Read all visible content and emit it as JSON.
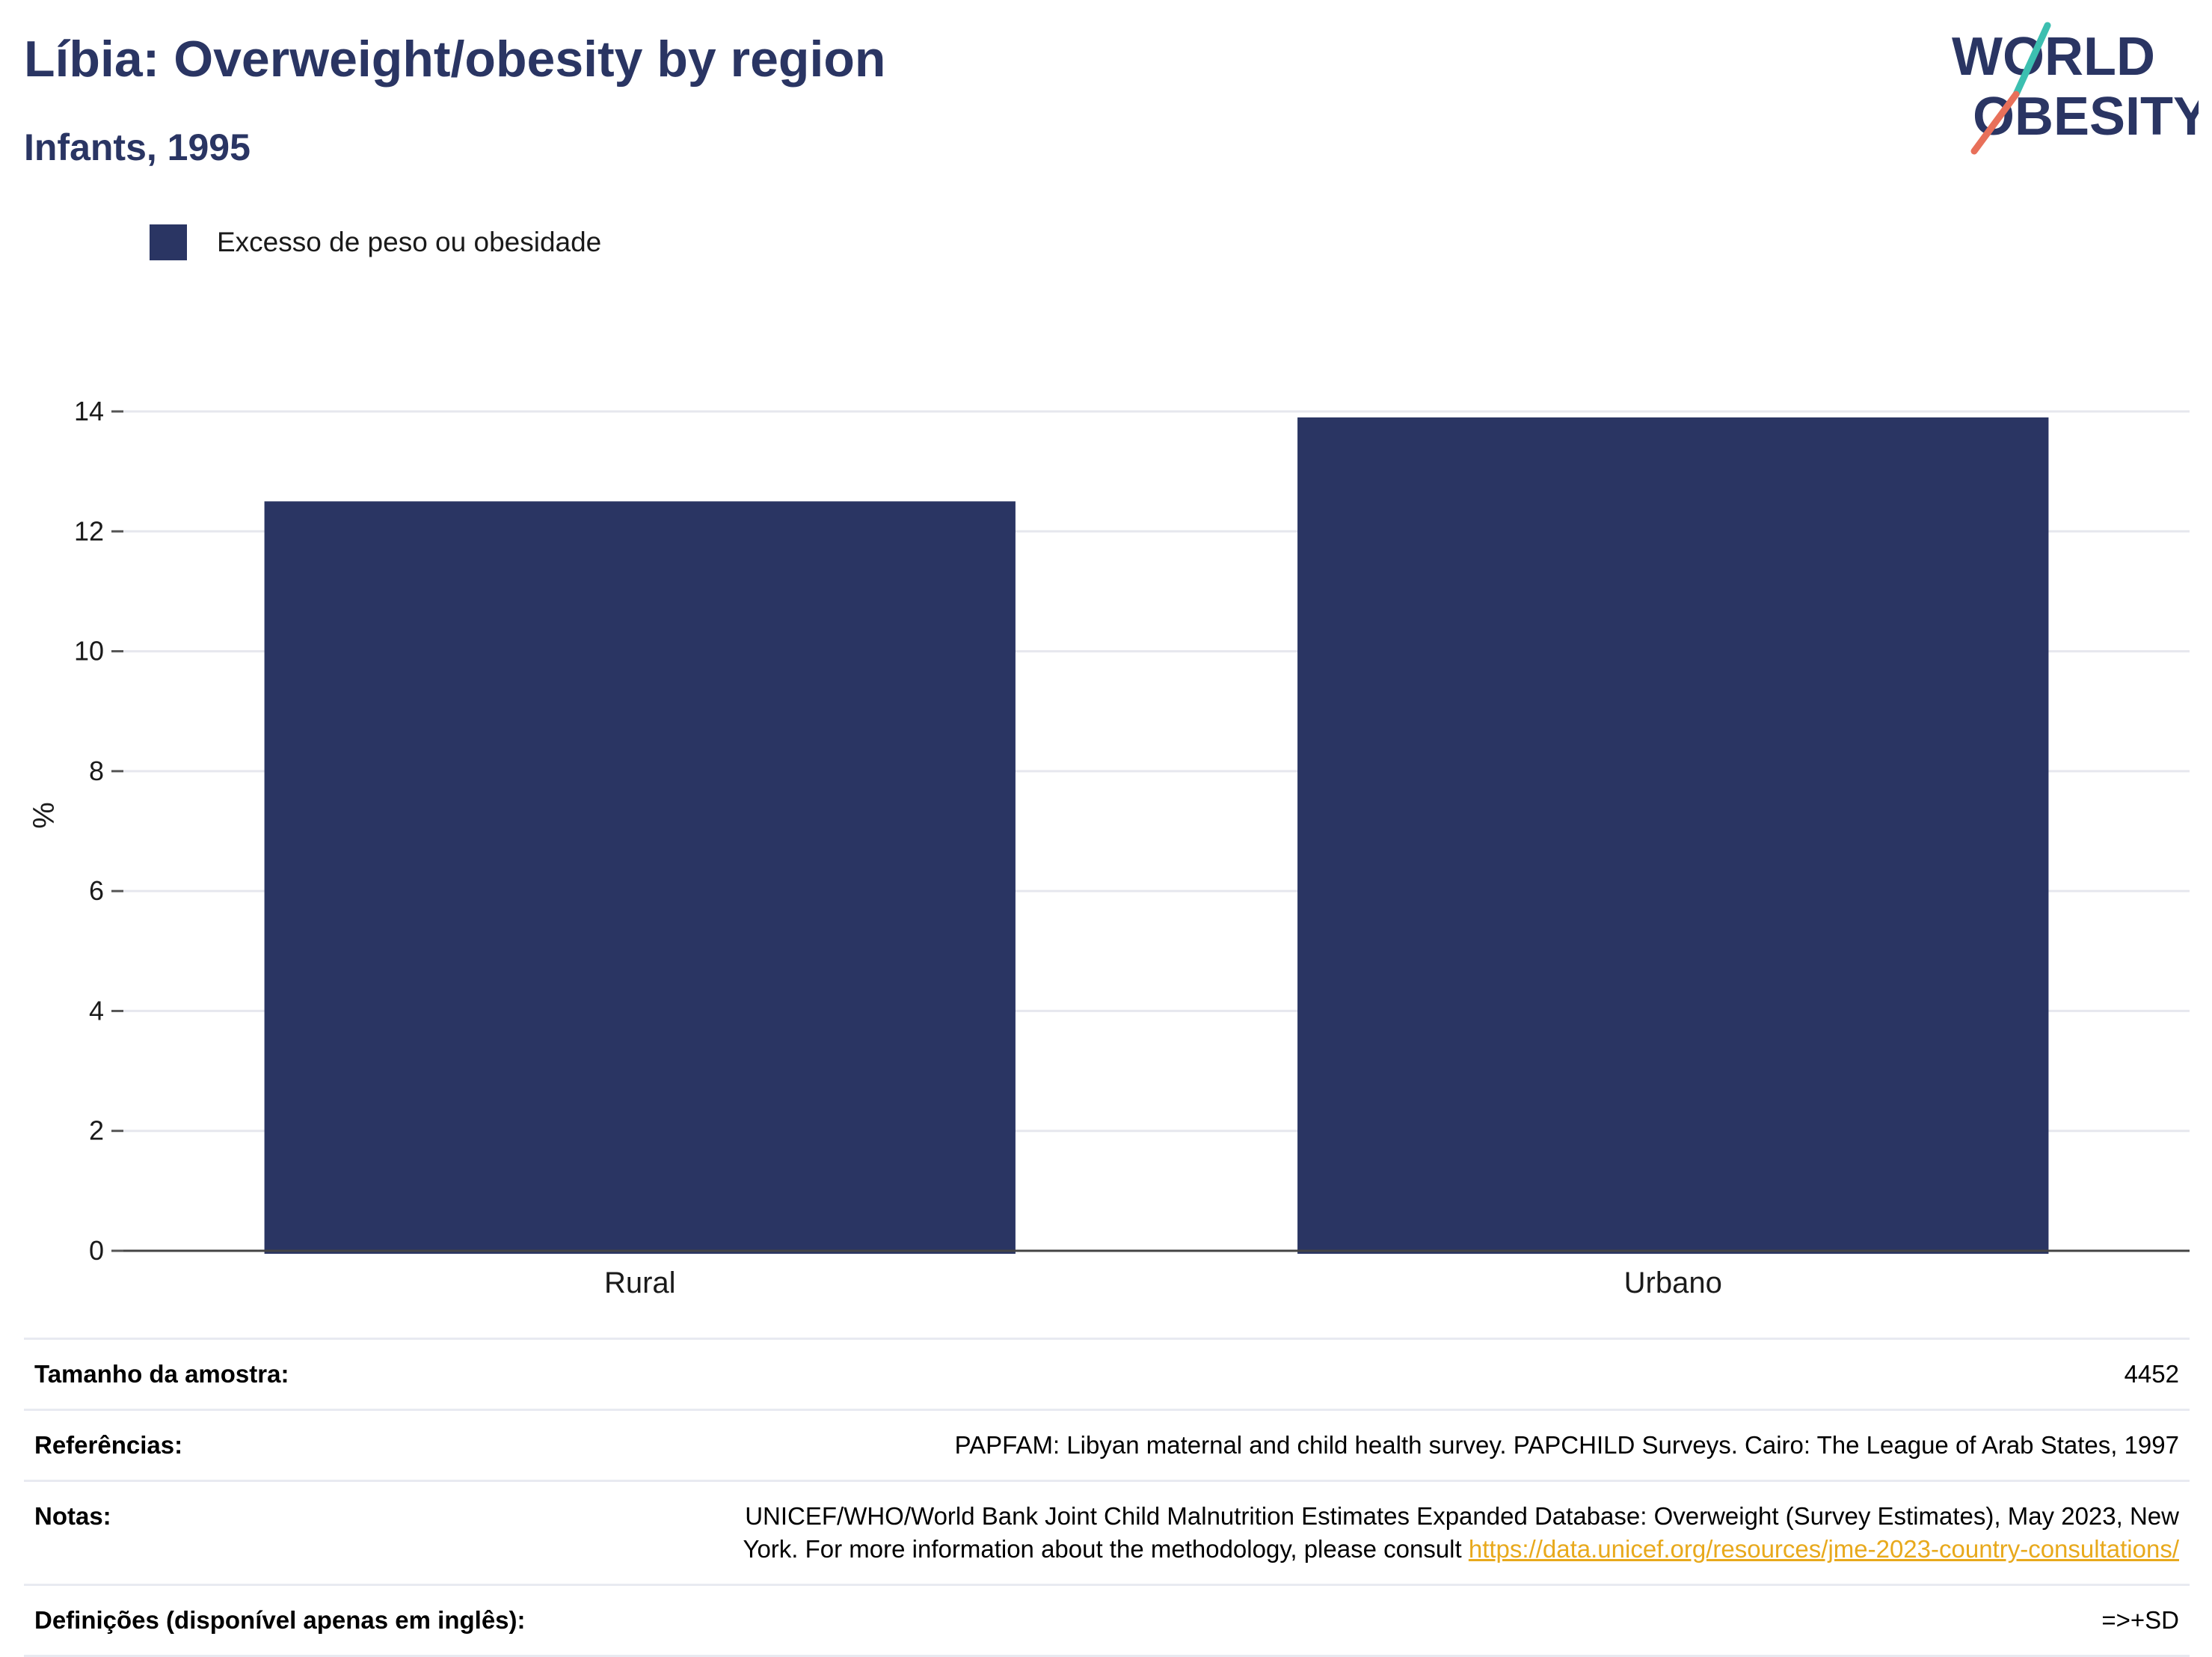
{
  "header": {
    "title": "Líbia: Overweight/obesity by region",
    "subtitle": "Infants, 1995"
  },
  "logo": {
    "line1": "WORLD",
    "line2": "OBESITY",
    "colors": {
      "navy": "#2a3563",
      "teal": "#3cbfb0",
      "coral": "#e8705a"
    }
  },
  "legend": {
    "items": [
      {
        "label": "Excesso de peso ou obesidade",
        "color": "#2a3563"
      }
    ]
  },
  "chart_data": {
    "type": "bar",
    "title": "Líbia: Overweight/obesity by region",
    "subtitle": "Infants, 1995",
    "categories": [
      "Rural",
      "Urbano"
    ],
    "series": [
      {
        "name": "Excesso de peso ou obesidade",
        "values": [
          12.5,
          13.9
        ],
        "color": "#2a3563"
      }
    ],
    "xlabel": "",
    "ylabel": "%",
    "ylim": [
      0,
      14
    ],
    "yticks": [
      0,
      2,
      4,
      6,
      8,
      10,
      12,
      14
    ],
    "grid": true,
    "legend_position": "top-left"
  },
  "info": {
    "sample_label": "Tamanho da amostra:",
    "sample_value": "4452",
    "refs_label": "Referências:",
    "refs_value": "PAPFAM: Libyan maternal and child health survey. PAPCHILD Surveys. Cairo: The League of Arab States, 1997",
    "notes_label": "Notas:",
    "notes_line1": "UNICEF/WHO/World Bank Joint Child Malnutrition Estimates Expanded Database: Overweight (Survey Estimates), May 2023, New",
    "notes_line2": "York. For more information about the methodology, please consult ",
    "notes_link": "https://data.unicef.org/resources/jme-2023-country-consultations/",
    "defs_label": "Definições (disponível apenas em inglês):",
    "defs_value": "=>+SD"
  }
}
